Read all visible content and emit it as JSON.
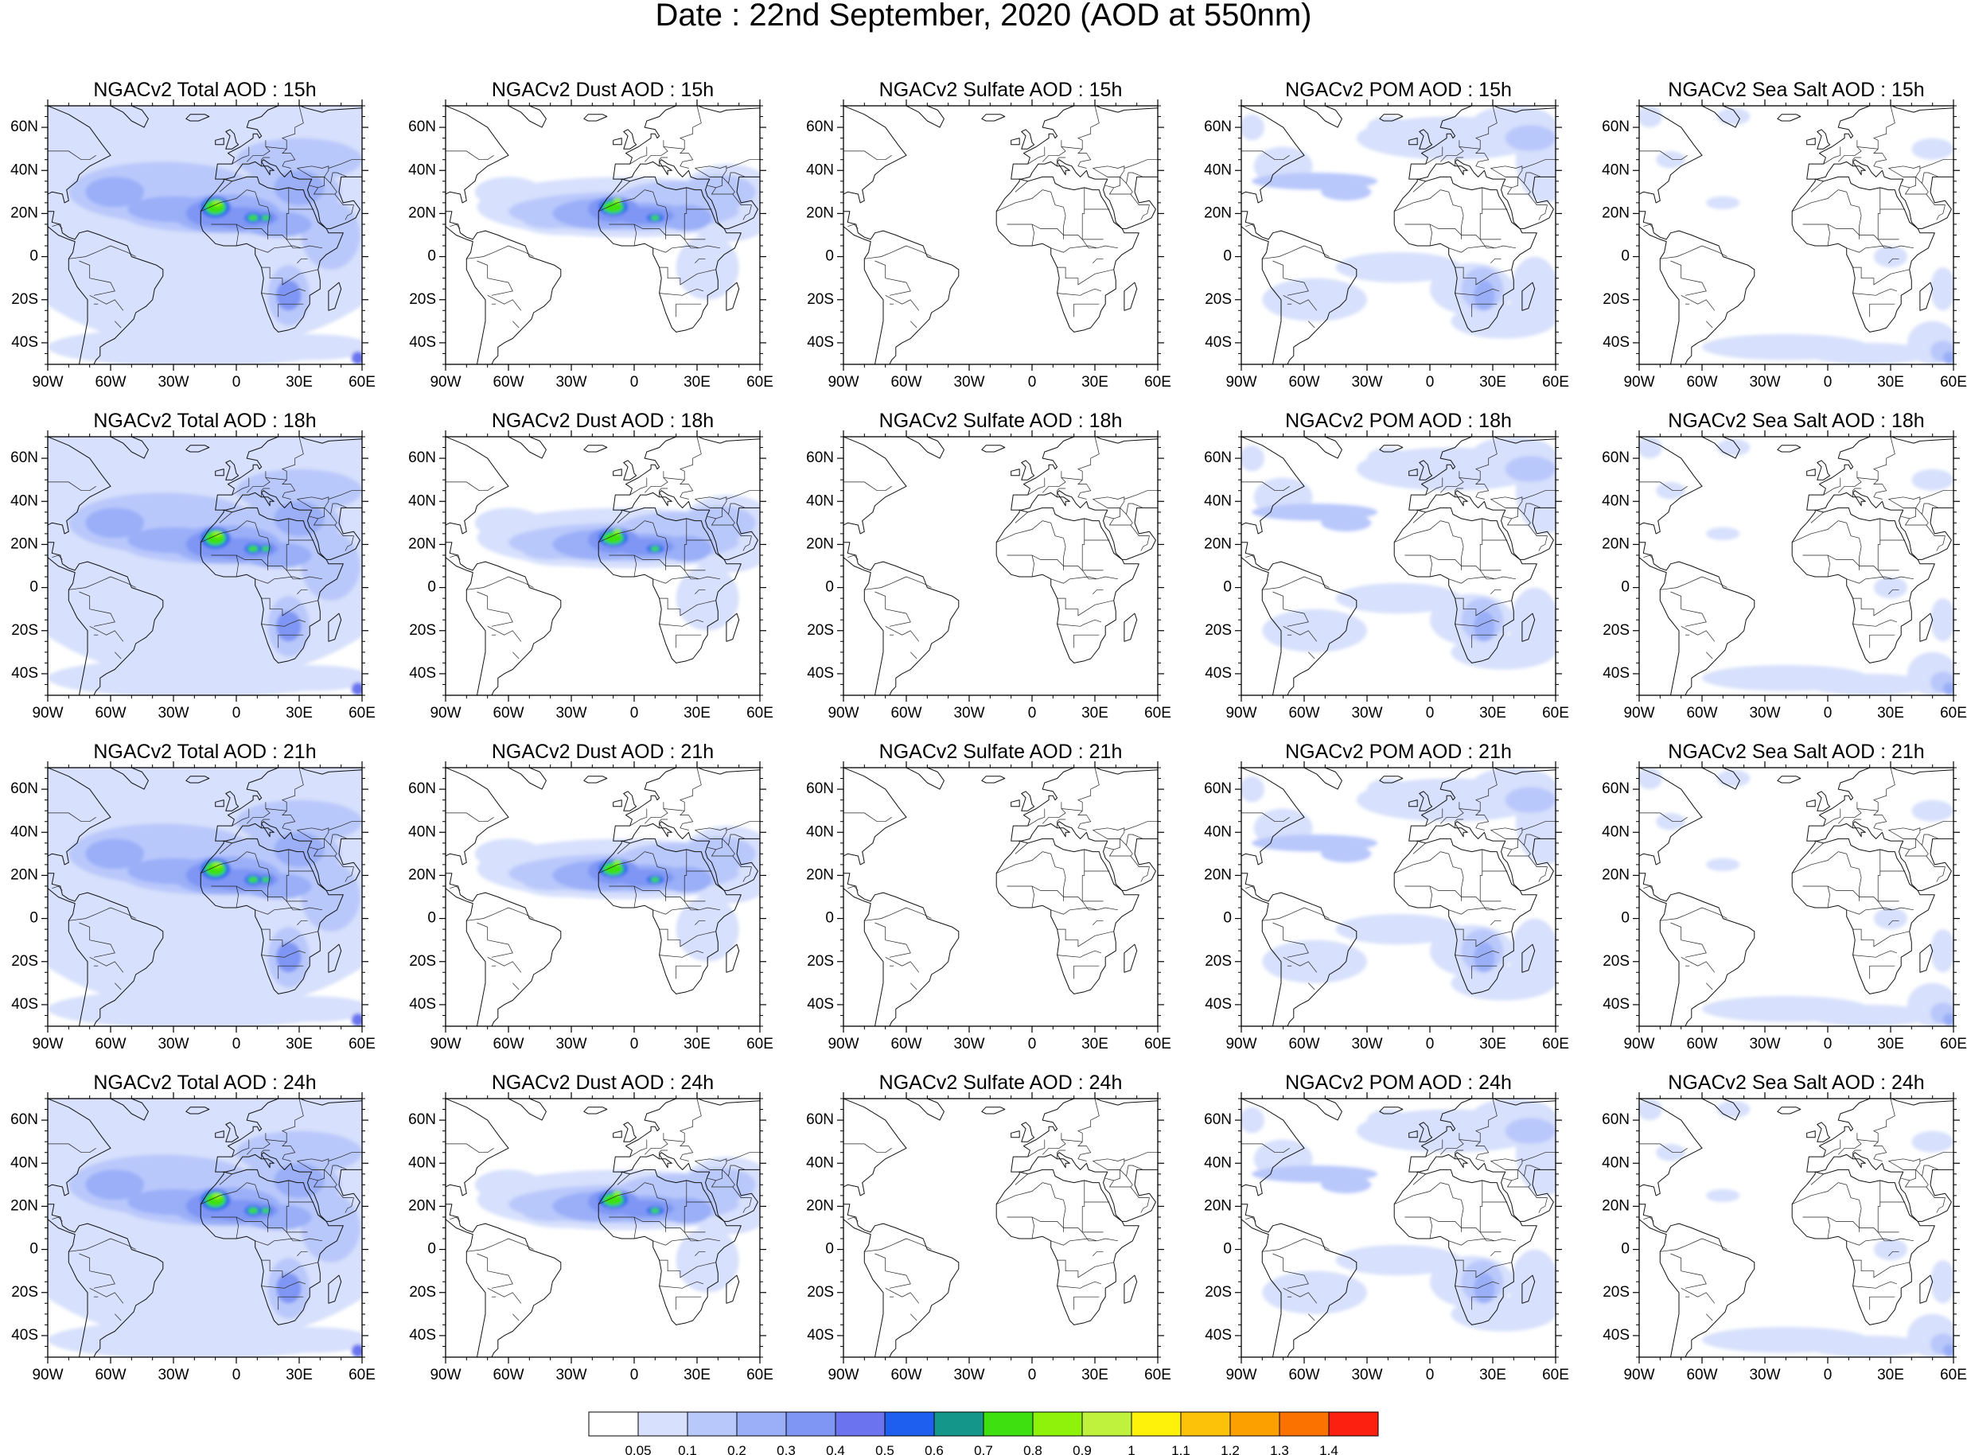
{
  "figure_title": "Date : 22nd  September, 2020 (AOD at 550nm)",
  "lon_ticks": [
    "90W",
    "60W",
    "30W",
    "0",
    "30E",
    "60E"
  ],
  "lat_ticks": [
    "60N",
    "40N",
    "20N",
    "0",
    "20S",
    "40S"
  ],
  "lon_range": [
    -90,
    60
  ],
  "lat_range": [
    -50,
    70
  ],
  "rows": [
    {
      "hour": "15h",
      "titles": [
        "NGACv2 Total AOD : 15h",
        "NGACv2 Dust AOD : 15h",
        "NGACv2 Sulfate AOD : 15h",
        "NGACv2 POM AOD : 15h",
        "NGACv2 Sea Salt AOD : 15h"
      ]
    },
    {
      "hour": "18h",
      "titles": [
        "NGACv2 Total AOD : 18h",
        "NGACv2 Dust AOD : 18h",
        "NGACv2 Sulfate AOD : 18h",
        "NGACv2 POM AOD : 18h",
        "NGACv2 Sea Salt AOD : 18h"
      ]
    },
    {
      "hour": "21h",
      "titles": [
        "NGACv2 Total AOD : 21h",
        "NGACv2 Dust AOD : 21h",
        "NGACv2 Sulfate AOD : 21h",
        "NGACv2 POM AOD : 21h",
        "NGACv2 Sea Salt AOD : 21h"
      ]
    },
    {
      "hour": "24h",
      "titles": [
        "NGACv2 Total AOD : 24h",
        "NGACv2 Dust AOD : 24h",
        "NGACv2 Sulfate AOD : 24h",
        "NGACv2 POM AOD : 24h",
        "NGACv2 Sea Salt  AOD : 24h"
      ]
    }
  ],
  "species": [
    "total",
    "dust",
    "sulfate",
    "pom",
    "seasalt"
  ],
  "colorbar": {
    "labels": [
      "0.05",
      "0.1",
      "0.2",
      "0.3",
      "0.4",
      "0.5",
      "0.6",
      "0.7",
      "0.8",
      "0.9",
      "1",
      "1.1",
      "1.2",
      "1.3",
      "1.4"
    ],
    "colors": [
      "#ffffff",
      "#d7e0fc",
      "#b9c8fb",
      "#9aaff8",
      "#7f96f4",
      "#6b74ee",
      "#1f5ff0",
      "#15968a",
      "#3ee010",
      "#8ff20a",
      "#bff23c",
      "#fff20a",
      "#fcc20a",
      "#fca000",
      "#fc7200",
      "#fc2010"
    ]
  }
}
